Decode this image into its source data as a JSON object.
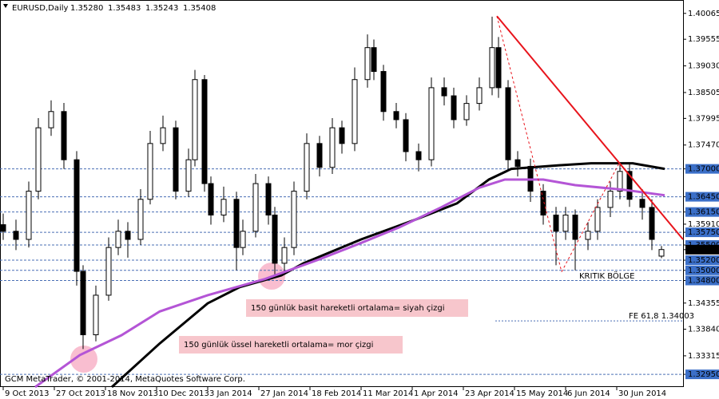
{
  "chart_data": {
    "type": "candlestick",
    "symbol": "EURUSD,Daily",
    "header_values": [
      "1.35280",
      "1.35483",
      "1.35243",
      "1.35408"
    ],
    "copyright": "GCM MetaTrader, © 2001-2014, MetaQuotes Software Corp.",
    "x": [
      1,
      5,
      9,
      12,
      16,
      20,
      24,
      26,
      30,
      34,
      37,
      40,
      44,
      47,
      51,
      55,
      59,
      61,
      64,
      66,
      70,
      74,
      76,
      80,
      84,
      86,
      89,
      92,
      96,
      100,
      104,
      107,
      111,
      115,
      117,
      120,
      124,
      127,
      131,
      135,
      139,
      142,
      146,
      150,
      154,
      156,
      159,
      162,
      166,
      170,
      174,
      177,
      180,
      184,
      187,
      191,
      194,
      197,
      201,
      204,
      207
    ],
    "open": [
      1.359,
      1.3577,
      1.3561,
      1.3656,
      1.3781,
      1.3813,
      1.3718,
      1.3498,
      1.3373,
      1.3451,
      1.3545,
      1.3577,
      1.3561,
      1.364,
      1.375,
      1.3781,
      1.3656,
      1.3718,
      1.3876,
      1.3671,
      1.3609,
      1.364,
      1.3545,
      1.3577,
      1.3671,
      1.3609,
      1.3514,
      1.3545,
      1.3656,
      1.375,
      1.3703,
      1.3781,
      1.375,
      1.3876,
      1.3939,
      1.3892,
      1.3813,
      1.3797,
      1.3734,
      1.3718,
      1.386,
      1.3844,
      1.3797,
      1.3829,
      1.386,
      1.3939,
      1.386,
      1.3718,
      1.3705,
      1.3656,
      1.3609,
      1.3577,
      1.3609,
      1.3561,
      1.3577,
      1.3624,
      1.3656,
      1.3695,
      1.364,
      1.3624,
      1.3528
    ],
    "high": [
      1.3612,
      1.36,
      1.3675,
      1.38,
      1.3835,
      1.383,
      1.3735,
      1.351,
      1.347,
      1.3565,
      1.36,
      1.3595,
      1.366,
      1.3775,
      1.3805,
      1.3795,
      1.374,
      1.3895,
      1.3885,
      1.3685,
      1.3665,
      1.3655,
      1.36,
      1.369,
      1.3685,
      1.3625,
      1.3565,
      1.3675,
      1.377,
      1.3765,
      1.38,
      1.3795,
      1.39,
      1.3965,
      1.3955,
      1.3905,
      1.383,
      1.381,
      1.375,
      1.388,
      1.388,
      1.386,
      1.3845,
      1.388,
      1.4,
      1.396,
      1.3875,
      1.3735,
      1.372,
      1.367,
      1.3625,
      1.3625,
      1.362,
      1.3595,
      1.364,
      1.3675,
      1.371,
      1.371,
      1.366,
      1.364,
      1.3548
    ],
    "low": [
      1.356,
      1.354,
      1.3545,
      1.364,
      1.3765,
      1.37,
      1.347,
      1.3345,
      1.336,
      1.344,
      1.353,
      1.3525,
      1.355,
      1.363,
      1.3735,
      1.364,
      1.3645,
      1.3705,
      1.3655,
      1.359,
      1.3595,
      1.35,
      1.353,
      1.3565,
      1.359,
      1.3485,
      1.3495,
      1.353,
      1.364,
      1.3685,
      1.369,
      1.373,
      1.3735,
      1.386,
      1.3875,
      1.3795,
      1.378,
      1.3715,
      1.3695,
      1.3705,
      1.3825,
      1.378,
      1.3785,
      1.3815,
      1.3845,
      1.384,
      1.37,
      1.3685,
      1.3635,
      1.359,
      1.351,
      1.356,
      1.35,
      1.354,
      1.356,
      1.3605,
      1.364,
      1.3625,
      1.36,
      1.354,
      1.3524
    ],
    "close": [
      1.3577,
      1.3561,
      1.3656,
      1.3781,
      1.3813,
      1.3718,
      1.3498,
      1.3373,
      1.3451,
      1.3545,
      1.3577,
      1.3561,
      1.364,
      1.375,
      1.3781,
      1.3656,
      1.3718,
      1.3876,
      1.3671,
      1.3609,
      1.364,
      1.3545,
      1.3577,
      1.3671,
      1.3609,
      1.3514,
      1.3545,
      1.3656,
      1.375,
      1.3703,
      1.3781,
      1.375,
      1.3876,
      1.3939,
      1.3892,
      1.3813,
      1.3797,
      1.3734,
      1.3718,
      1.386,
      1.3844,
      1.3797,
      1.3829,
      1.386,
      1.3939,
      1.386,
      1.3718,
      1.3705,
      1.3656,
      1.3609,
      1.3577,
      1.3609,
      1.3561,
      1.3577,
      1.3624,
      1.3656,
      1.3695,
      1.364,
      1.3624,
      1.3561,
      1.3541
    ],
    "moving_averages": [
      {
        "color": "#000000",
        "x": [
          35,
          50,
          65,
          75,
          88,
          95,
          113,
          130,
          143,
          153,
          160,
          175,
          185,
          198,
          208
        ],
        "values": [
          1.327,
          1.3356,
          1.3435,
          1.3467,
          1.349,
          1.3514,
          1.3561,
          1.36,
          1.3632,
          1.3679,
          1.37,
          1.3707,
          1.3711,
          1.3711,
          1.37
        ]
      },
      {
        "color": "#b455d6",
        "x": [
          11,
          25,
          38,
          50,
          65,
          83,
          100,
          113,
          125,
          138,
          150,
          158,
          170,
          180,
          195,
          208
        ],
        "values": [
          1.327,
          1.3333,
          1.3372,
          1.3419,
          1.3451,
          1.3483,
          1.3522,
          1.3554,
          1.3585,
          1.3624,
          1.3663,
          1.3679,
          1.3679,
          1.3668,
          1.3659,
          1.3648
        ]
      }
    ],
    "trendlines": [
      {
        "color": "#e8141c",
        "style": "solid",
        "x": [
          155.5,
          213.75
        ],
        "values": [
          1.4001,
          1.3561
        ]
      },
      {
        "color": "#e8141c",
        "style": "dashed",
        "x": [
          155.5,
          175.75
        ],
        "values": [
          1.4001,
          1.3497
        ]
      },
      {
        "color": "#e8141c",
        "style": "dashed",
        "x": [
          175.75,
          193.75
        ],
        "values": [
          1.3497,
          1.3711
        ]
      }
    ],
    "levels": [
      1.37,
      1.3645,
      1.3615,
      1.3575,
      1.355,
      1.352,
      1.35,
      1.348,
      1.3295
    ],
    "fibo": {
      "value": 1.34003,
      "x_start": 155,
      "label": "FE 61,8 1.34003"
    },
    "current": 1.35408,
    "xlim": [
      0,
      213.75
    ],
    "ylim": [
      1.327,
      1.4025
    ],
    "yticks": [
      {
        "value": 1.40065,
        "label": "1.40065"
      },
      {
        "value": 1.39555,
        "label": "1.39555"
      },
      {
        "value": 1.3903,
        "label": "1.39030"
      },
      {
        "value": 1.38505,
        "label": "1.38505"
      },
      {
        "value": 1.37995,
        "label": "1.37995"
      },
      {
        "value": 1.3747,
        "label": "1.37470"
      },
      {
        "value": 1.37,
        "label": "1.37000"
      },
      {
        "value": 1.3645,
        "label": "1.36450"
      },
      {
        "value": 1.3615,
        "label": "1.36150"
      },
      {
        "value": 1.3591,
        "label": "1.35910"
      },
      {
        "value": 1.3575,
        "label": "1.35750"
      },
      {
        "value": 1.355,
        "label": "1.35500"
      },
      {
        "value": 1.35408,
        "label": "1.35408"
      },
      {
        "value": 1.352,
        "label": "1.35200"
      },
      {
        "value": 1.35,
        "label": "1.35000"
      },
      {
        "value": 1.348,
        "label": "1.34800"
      },
      {
        "value": 1.34355,
        "label": "1.34355"
      },
      {
        "value": 1.3384,
        "label": "1.33840"
      },
      {
        "value": 1.33315,
        "label": "1.33315"
      },
      {
        "value": 1.3295,
        "label": "1.32950"
      }
    ],
    "xticks": [
      {
        "value": 1,
        "label": "9 Oct 2013"
      },
      {
        "value": 17,
        "label": "27 Oct 2013"
      },
      {
        "value": 33,
        "label": "18 Nov 2013"
      },
      {
        "value": 49,
        "label": "10 Dec 2013"
      },
      {
        "value": 65,
        "label": "3 Jan 2014"
      },
      {
        "value": 81,
        "label": "27 Jan 2014"
      },
      {
        "value": 97,
        "label": "18 Feb 2014"
      },
      {
        "value": 113,
        "label": "11 Mar 2014"
      },
      {
        "value": 129,
        "label": "1 Apr 2014"
      },
      {
        "value": 145,
        "label": "23 Apr 2014"
      },
      {
        "value": 161,
        "label": "15 May 2014"
      },
      {
        "value": 177,
        "label": "6 Jun 2014"
      },
      {
        "value": 193,
        "label": "30 Jun 2014"
      }
    ],
    "annotations": {
      "zone": "KRITIK BÖLGE",
      "sma_note": "150 günlük basit hareketli ortalama= siyah çizgi",
      "ema_note": "150 günlük üssel hareketli ortalama= mor çizgi"
    }
  }
}
